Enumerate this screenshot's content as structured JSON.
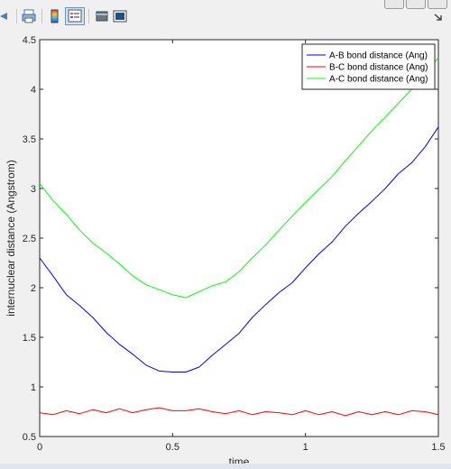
{
  "toolbar": {
    "icons": [
      "back-arrow-icon",
      "print-icon",
      "colorbar-icon",
      "legend-icon",
      "hide-plot-tools-icon",
      "show-plot-tools-icon",
      "dock-arrow-icon"
    ],
    "window_buttons": [
      "minimize-icon",
      "maximize-icon",
      "close-icon"
    ]
  },
  "chart_data": {
    "type": "line",
    "title": "",
    "xlabel": "time",
    "ylabel": "internuclear distance (Angstrom)",
    "xlim": [
      0,
      1.5
    ],
    "ylim": [
      0.5,
      4.5
    ],
    "x_ticks": [
      "0",
      "0.5",
      "1",
      "1.5"
    ],
    "y_ticks": [
      "0.5",
      "1",
      "1.5",
      "2",
      "2.5",
      "3",
      "3.5",
      "4",
      "4.5"
    ],
    "legend_position": "top-right",
    "x": [
      0,
      0.05,
      0.1,
      0.15,
      0.2,
      0.25,
      0.3,
      0.35,
      0.4,
      0.45,
      0.5,
      0.55,
      0.6,
      0.65,
      0.7,
      0.75,
      0.8,
      0.85,
      0.9,
      0.95,
      1.0,
      1.05,
      1.1,
      1.15,
      1.2,
      1.25,
      1.3,
      1.35,
      1.4,
      1.45,
      1.5
    ],
    "series": [
      {
        "name": "A-B bond distance (Ang)",
        "color": "#0000ff",
        "values": [
          2.3,
          2.12,
          1.93,
          1.82,
          1.7,
          1.55,
          1.43,
          1.33,
          1.22,
          1.16,
          1.15,
          1.15,
          1.2,
          1.32,
          1.43,
          1.54,
          1.7,
          1.83,
          1.95,
          2.05,
          2.2,
          2.34,
          2.46,
          2.62,
          2.75,
          2.87,
          3.0,
          3.15,
          3.26,
          3.42,
          3.62
        ]
      },
      {
        "name": "B-C bond distance (Ang)",
        "color": "#ff0000",
        "values": [
          0.74,
          0.72,
          0.76,
          0.73,
          0.77,
          0.74,
          0.78,
          0.74,
          0.77,
          0.79,
          0.76,
          0.76,
          0.78,
          0.75,
          0.73,
          0.76,
          0.72,
          0.75,
          0.74,
          0.72,
          0.76,
          0.72,
          0.75,
          0.71,
          0.75,
          0.72,
          0.75,
          0.72,
          0.76,
          0.75,
          0.72
        ]
      },
      {
        "name": "A-C bond distance (Ang)",
        "color": "#00ff00",
        "values": [
          3.05,
          2.88,
          2.74,
          2.58,
          2.45,
          2.35,
          2.24,
          2.12,
          2.03,
          1.98,
          1.93,
          1.9,
          1.96,
          2.02,
          2.06,
          2.16,
          2.3,
          2.43,
          2.58,
          2.72,
          2.86,
          2.99,
          3.12,
          3.28,
          3.43,
          3.58,
          3.72,
          3.86,
          4.0,
          4.15,
          4.32
        ]
      }
    ]
  }
}
